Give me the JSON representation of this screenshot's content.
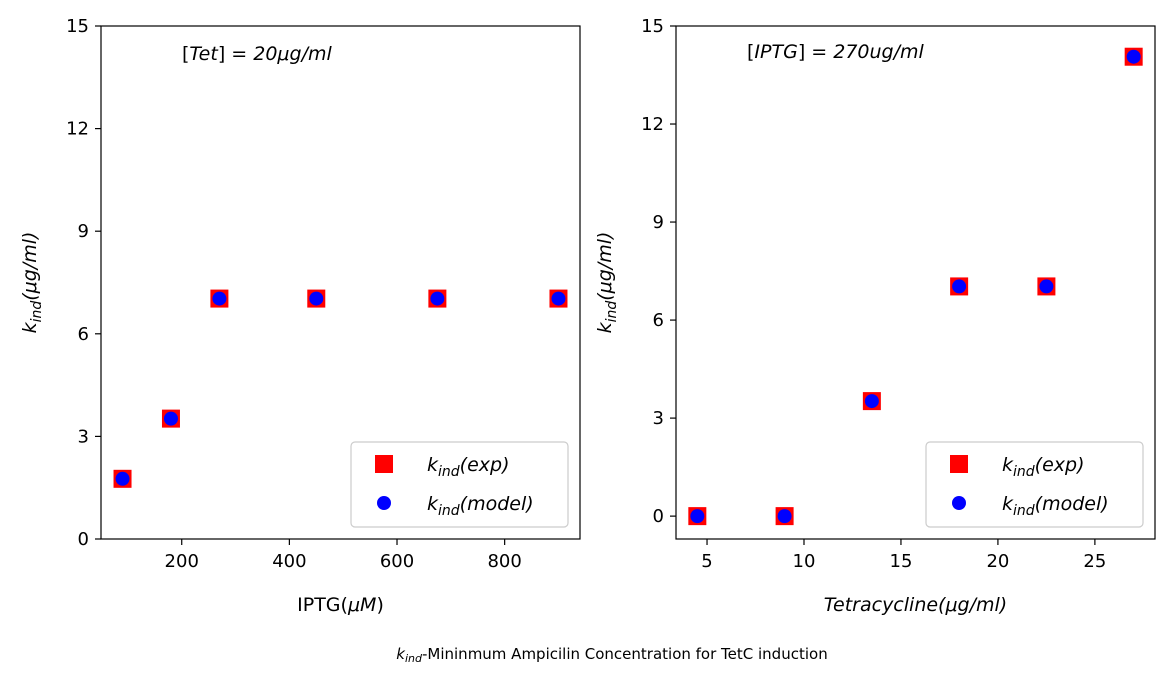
{
  "colors": {
    "exp": "#ff0000",
    "model": "#0000ff"
  },
  "caption": {
    "symbol": "k",
    "subscript": "ind",
    "text": "-Mininmum Ampicilin Concentration for TetC induction"
  },
  "chart_data": [
    {
      "type": "scatter",
      "annotation": {
        "prefix": "[",
        "var": "Tet",
        "suffix": "] = 20μg/ml"
      },
      "xlabel": {
        "main": "IPTG(",
        "var": "μM",
        "end": ")"
      },
      "ylabel": {
        "sym": "k",
        "sub": "ind",
        "rest": "(μg/ml)"
      },
      "xlim": [
        50,
        940
      ],
      "ylim": [
        0,
        15
      ],
      "xticks": [
        200,
        400,
        600,
        800
      ],
      "yticks": [
        0,
        3,
        6,
        9,
        12,
        15
      ],
      "legend_position": "lower-right",
      "series": [
        {
          "name": "exp",
          "marker": "square",
          "x": [
            90,
            180,
            270,
            450,
            675,
            900
          ],
          "y": [
            1.76,
            3.52,
            7.03,
            7.03,
            7.03,
            7.03
          ]
        },
        {
          "name": "model",
          "marker": "circle",
          "x": [
            90,
            180,
            270,
            450,
            675,
            900
          ],
          "y": [
            1.76,
            3.52,
            7.03,
            7.03,
            7.03,
            7.03
          ]
        }
      ]
    },
    {
      "type": "scatter",
      "annotation": {
        "prefix": "[",
        "var": "IPTG",
        "suffix": "] = 270ug/ml"
      },
      "xlabel": {
        "main": "",
        "var": "Tetracycline(μg/ml)",
        "end": ""
      },
      "ylabel": {
        "sym": "k",
        "sub": "ind",
        "rest": "(μg/ml)"
      },
      "xlim": [
        3.4,
        28.1
      ],
      "ylim": [
        -0.7,
        15
      ],
      "xticks": [
        5,
        10,
        15,
        20,
        25
      ],
      "yticks": [
        0,
        3,
        6,
        9,
        12,
        15
      ],
      "legend_position": "lower-right",
      "series": [
        {
          "name": "exp",
          "marker": "square",
          "x": [
            4.5,
            9,
            13.5,
            18,
            22.5,
            27
          ],
          "y": [
            0,
            0,
            3.52,
            7.03,
            7.03,
            14.06
          ]
        },
        {
          "name": "model",
          "marker": "circle",
          "x": [
            4.5,
            9,
            13.5,
            18,
            22.5,
            27
          ],
          "y": [
            0,
            0,
            3.52,
            7.03,
            7.03,
            14.06
          ]
        }
      ]
    }
  ]
}
